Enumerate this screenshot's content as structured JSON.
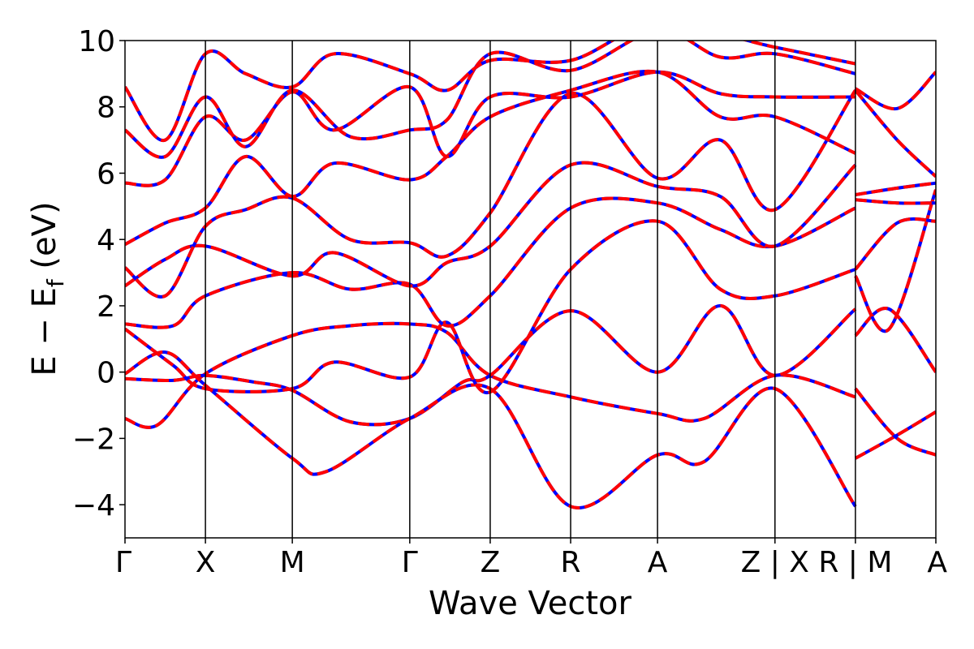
{
  "chart_data": {
    "type": "line",
    "title": "",
    "xlabel": "Wave Vector",
    "ylabel_main": "E − E",
    "ylabel_sub": "f",
    "ylabel_unit": " (eV)",
    "ylim": [
      -5,
      10
    ],
    "yticks": [
      -4,
      -2,
      0,
      2,
      4,
      6,
      8,
      10
    ],
    "ytick_labels": [
      "−4",
      "−2",
      "0",
      "2",
      "4",
      "6",
      "8",
      "10"
    ],
    "kpath_positions": [
      0,
      0.5,
      1.04,
      1.77,
      2.27,
      2.77,
      3.31,
      4.04,
      4.54,
      5.04
    ],
    "kpath_labels": [
      "Γ",
      "X",
      "M",
      "Γ",
      "Z",
      "R",
      "A",
      "Z | X",
      "R | M",
      "A"
    ],
    "xlim": [
      0,
      5.04
    ],
    "series_style": [
      {
        "color": "#0000ff",
        "dash": "solid"
      },
      {
        "color": "#ff0000",
        "dash": "dashed"
      }
    ],
    "bands": [
      [
        [
          0,
          -1.4
        ],
        [
          0.2,
          -1.6
        ],
        [
          0.5,
          -0.05
        ],
        [
          1.04,
          1.1
        ],
        [
          1.4,
          1.4
        ],
        [
          1.77,
          1.45
        ],
        [
          2.0,
          1.2
        ],
        [
          2.27,
          -0.1
        ],
        [
          2.77,
          -0.75
        ],
        [
          3.31,
          -1.25
        ],
        [
          3.6,
          -1.4
        ],
        [
          4.04,
          -0.1
        ],
        [
          4.54,
          -0.75
        ]
      ],
      [
        [
          0,
          -0.2
        ],
        [
          0.3,
          -0.25
        ],
        [
          0.5,
          -0.1
        ],
        [
          0.8,
          -0.3
        ],
        [
          1.04,
          -0.55
        ],
        [
          1.4,
          -1.5
        ],
        [
          1.77,
          -1.4
        ],
        [
          2.1,
          -0.3
        ],
        [
          2.27,
          -0.1
        ],
        [
          2.77,
          1.85
        ],
        [
          3.31,
          0.0
        ],
        [
          3.7,
          2.0
        ],
        [
          4.04,
          -0.1
        ],
        [
          4.54,
          1.9
        ]
      ],
      [
        [
          0,
          -0.05
        ],
        [
          0.25,
          0.6
        ],
        [
          0.5,
          -0.4
        ],
        [
          1.04,
          -2.6
        ],
        [
          1.25,
          -3.0
        ],
        [
          1.77,
          -1.4
        ],
        [
          2.27,
          -0.5
        ],
        [
          2.77,
          -4.05
        ],
        [
          3.31,
          -2.5
        ],
        [
          3.6,
          -2.7
        ],
        [
          4.04,
          -0.5
        ],
        [
          4.54,
          -4.05
        ]
      ],
      [
        [
          0,
          1.3
        ],
        [
          0.3,
          0.2
        ],
        [
          0.5,
          -0.5
        ],
        [
          1.04,
          -0.5
        ],
        [
          1.3,
          0.3
        ],
        [
          1.77,
          -0.15
        ],
        [
          2.0,
          1.5
        ],
        [
          2.27,
          -0.6
        ],
        [
          2.77,
          3.1
        ],
        [
          3.31,
          4.55
        ],
        [
          3.7,
          2.5
        ],
        [
          4.04,
          2.3
        ],
        [
          4.54,
          3.1
        ]
      ],
      [
        [
          0,
          1.45
        ],
        [
          0.3,
          1.4
        ],
        [
          0.5,
          2.3
        ],
        [
          1.04,
          3.0
        ],
        [
          1.4,
          2.5
        ],
        [
          1.77,
          2.65
        ],
        [
          2.0,
          1.4
        ],
        [
          2.27,
          2.3
        ],
        [
          2.77,
          4.95
        ],
        [
          3.31,
          5.1
        ],
        [
          3.7,
          4.3
        ],
        [
          4.04,
          3.8
        ],
        [
          4.54,
          4.95
        ]
      ],
      [
        [
          0,
          2.6
        ],
        [
          0.25,
          3.4
        ],
        [
          0.5,
          3.8
        ],
        [
          1.04,
          2.9
        ],
        [
          1.3,
          3.6
        ],
        [
          1.77,
          2.6
        ],
        [
          2.0,
          3.3
        ],
        [
          2.27,
          3.8
        ],
        [
          2.77,
          6.25
        ],
        [
          3.31,
          5.6
        ],
        [
          3.7,
          5.3
        ],
        [
          4.04,
          3.8
        ],
        [
          4.54,
          6.25
        ]
      ],
      [
        [
          0,
          3.15
        ],
        [
          0.25,
          2.3
        ],
        [
          0.5,
          4.4
        ],
        [
          0.75,
          4.9
        ],
        [
          1.04,
          5.25
        ],
        [
          1.4,
          4.0
        ],
        [
          1.77,
          3.9
        ],
        [
          2.0,
          3.5
        ],
        [
          2.27,
          4.8
        ],
        [
          2.77,
          8.4
        ],
        [
          3.31,
          5.85
        ],
        [
          3.7,
          7.0
        ],
        [
          4.04,
          4.9
        ],
        [
          4.54,
          8.5
        ]
      ],
      [
        [
          0,
          3.85
        ],
        [
          0.25,
          4.5
        ],
        [
          0.5,
          4.95
        ],
        [
          0.75,
          6.5
        ],
        [
          1.04,
          5.3
        ],
        [
          1.3,
          6.3
        ],
        [
          1.77,
          5.8
        ],
        [
          2.0,
          6.5
        ],
        [
          2.27,
          7.7
        ],
        [
          2.77,
          8.5
        ],
        [
          3.31,
          9.05
        ],
        [
          3.7,
          7.7
        ],
        [
          4.04,
          7.7
        ],
        [
          4.54,
          6.6
        ]
      ],
      [
        [
          0,
          5.7
        ],
        [
          0.25,
          5.8
        ],
        [
          0.5,
          7.7
        ],
        [
          0.75,
          7.0
        ],
        [
          1.04,
          8.45
        ],
        [
          1.3,
          7.3
        ],
        [
          1.77,
          8.6
        ],
        [
          2.0,
          6.5
        ],
        [
          2.27,
          8.3
        ],
        [
          2.77,
          8.3
        ],
        [
          3.31,
          9.05
        ],
        [
          3.7,
          8.4
        ],
        [
          4.04,
          8.3
        ],
        [
          4.54,
          8.3
        ]
      ],
      [
        [
          0,
          7.3
        ],
        [
          0.25,
          6.5
        ],
        [
          0.5,
          8.3
        ],
        [
          0.75,
          6.8
        ],
        [
          1.04,
          8.5
        ],
        [
          1.4,
          7.1
        ],
        [
          1.77,
          7.3
        ],
        [
          2.0,
          7.6
        ],
        [
          2.27,
          9.6
        ],
        [
          2.77,
          9.1
        ],
        [
          3.31,
          10.3
        ],
        [
          3.7,
          9.5
        ],
        [
          4.04,
          9.6
        ],
        [
          4.54,
          9.0
        ]
      ],
      [
        [
          0,
          8.6
        ],
        [
          0.25,
          7.0
        ],
        [
          0.5,
          9.6
        ],
        [
          0.75,
          9.0
        ],
        [
          1.04,
          8.6
        ],
        [
          1.3,
          9.6
        ],
        [
          1.77,
          9.0
        ],
        [
          2.0,
          8.5
        ],
        [
          2.27,
          9.4
        ],
        [
          2.77,
          9.4
        ],
        [
          3.31,
          10.5
        ],
        [
          4.04,
          9.8
        ],
        [
          4.54,
          9.3
        ]
      ],
      [
        [
          4.54,
          -2.6
        ],
        [
          4.8,
          -1.9
        ],
        [
          5.04,
          -1.2
        ]
      ],
      [
        [
          4.54,
          -0.5
        ],
        [
          4.8,
          -2.0
        ],
        [
          5.04,
          -2.5
        ]
      ],
      [
        [
          4.54,
          1.1
        ],
        [
          4.75,
          1.9
        ],
        [
          5.04,
          0.0
        ]
      ],
      [
        [
          4.54,
          2.9
        ],
        [
          4.75,
          1.3
        ],
        [
          5.04,
          5.5
        ]
      ],
      [
        [
          4.54,
          3.1
        ],
        [
          4.8,
          4.5
        ],
        [
          5.04,
          4.55
        ]
      ],
      [
        [
          4.54,
          5.2
        ],
        [
          4.8,
          5.1
        ],
        [
          5.04,
          5.1
        ]
      ],
      [
        [
          4.54,
          5.35
        ],
        [
          4.8,
          5.55
        ],
        [
          5.04,
          5.7
        ]
      ],
      [
        [
          4.54,
          8.5
        ],
        [
          4.8,
          7.0
        ],
        [
          5.04,
          5.9
        ]
      ],
      [
        [
          4.54,
          8.55
        ],
        [
          4.8,
          7.95
        ],
        [
          5.04,
          9.05
        ]
      ]
    ]
  }
}
